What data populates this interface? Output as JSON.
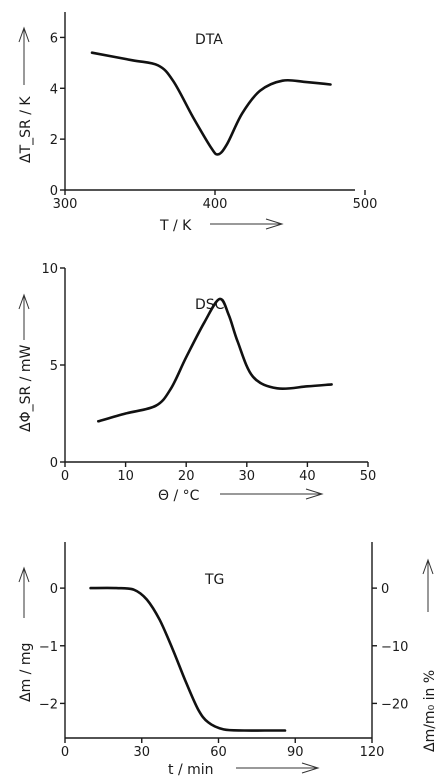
{
  "chart_data": [
    {
      "type": "line",
      "title": "DTA",
      "xlabel": "T / K",
      "ylabel": "ΔT_SR / K",
      "xlim": [
        300,
        500
      ],
      "ylim": [
        0,
        7
      ],
      "xticks": [
        300,
        400,
        500
      ],
      "yticks": [
        0,
        2,
        4,
        6
      ],
      "grid": false,
      "series": [
        {
          "x": [
            318,
            345,
            362,
            372,
            385,
            397,
            402,
            408,
            418,
            430,
            445,
            460,
            477
          ],
          "y": [
            5.4,
            5.1,
            4.9,
            4.3,
            2.9,
            1.7,
            1.4,
            1.8,
            3.0,
            3.9,
            4.3,
            4.25,
            4.15
          ]
        }
      ]
    },
    {
      "type": "line",
      "title": "DSC",
      "xlabel": "Θ / °C",
      "ylabel": "ΔΦ_SR / mW",
      "xlim": [
        0,
        50
      ],
      "ylim": [
        0,
        10
      ],
      "xticks": [
        0,
        10,
        20,
        30,
        40,
        50
      ],
      "yticks": [
        0,
        5,
        10
      ],
      "grid": false,
      "series": [
        {
          "x": [
            5.5,
            10,
            15,
            17.5,
            20,
            23,
            25.5,
            27,
            28.5,
            31,
            35,
            40,
            44
          ],
          "y": [
            2.1,
            2.5,
            2.9,
            3.8,
            5.4,
            7.2,
            8.4,
            7.6,
            6.2,
            4.4,
            3.8,
            3.9,
            4.0
          ]
        }
      ]
    },
    {
      "type": "line",
      "title": "TG",
      "xlabel": "t / min",
      "ylabel": "Δm / mg",
      "y2label": "Δm/m₀ in %",
      "xlim": [
        0,
        120
      ],
      "ylim": [
        -2.6,
        0.8
      ],
      "xticks": [
        0,
        30,
        60,
        90,
        120
      ],
      "yticks": [
        0,
        -1,
        -2
      ],
      "y2ticks": [
        0,
        -10,
        -20
      ],
      "grid": false,
      "series": [
        {
          "x": [
            10,
            20,
            27,
            32,
            37,
            42,
            47,
            52,
            56,
            62,
            70,
            78,
            86
          ],
          "y": [
            0,
            0,
            -0.03,
            -0.2,
            -0.55,
            -1.05,
            -1.6,
            -2.1,
            -2.33,
            -2.45,
            -2.47,
            -2.47,
            -2.47
          ]
        }
      ]
    }
  ]
}
